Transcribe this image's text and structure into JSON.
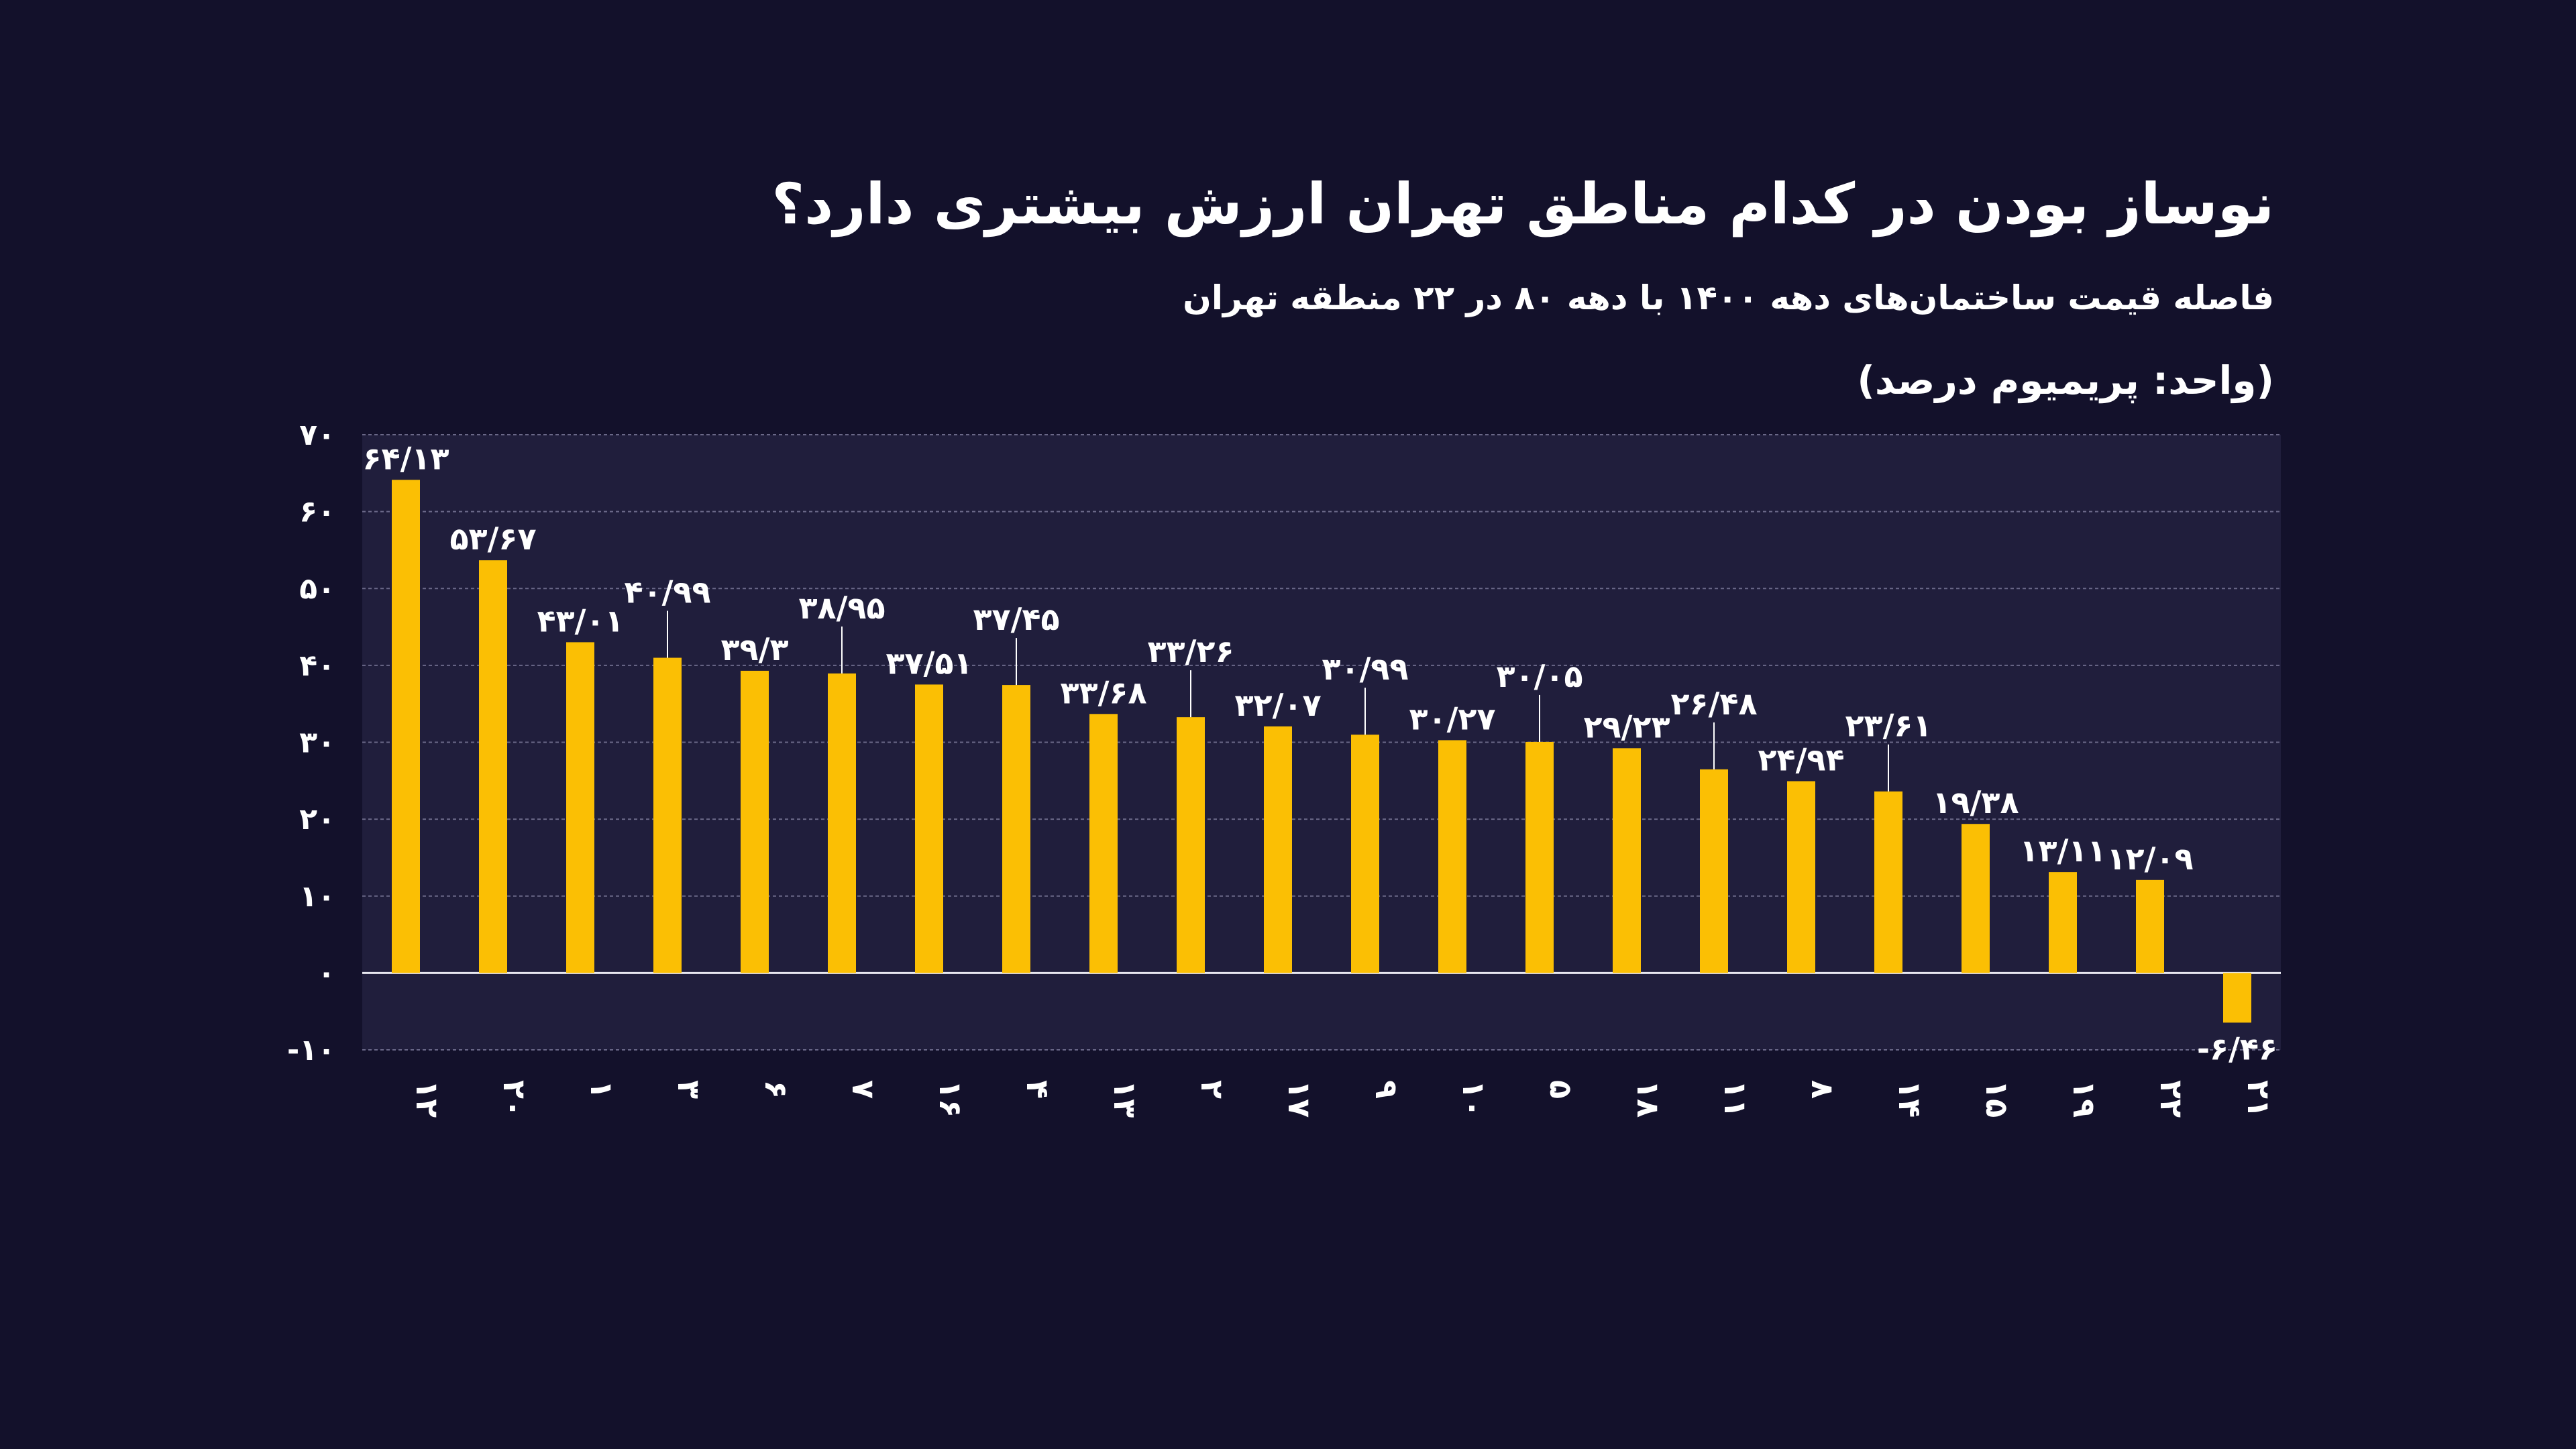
{
  "colors": {
    "background": "#13112b",
    "plot_background": "#201e3c",
    "bar": "#fbbf04",
    "grid": "#6a6888",
    "text": "#ffffff"
  },
  "chart_data": {
    "type": "bar",
    "title": "نوساز بودن در کدام مناطق تهران ارزش بیشتری دارد؟",
    "subtitle": "فاصله قیمت ساختمان‌های دهه ۱۴۰۰ با دهه ۸۰ در ۲۲ منطقه تهران",
    "unit_label": "(واحد: پریمیوم درصد)",
    "xlabel": "",
    "ylabel": "",
    "ylim": [
      -10,
      70
    ],
    "yticks": [
      {
        "value": 70,
        "label": "۷۰"
      },
      {
        "value": 60,
        "label": "۶۰"
      },
      {
        "value": 50,
        "label": "۵۰"
      },
      {
        "value": 40,
        "label": "۴۰"
      },
      {
        "value": 30,
        "label": "۳۰"
      },
      {
        "value": 20,
        "label": "۲۰"
      },
      {
        "value": 10,
        "label": "۱۰"
      },
      {
        "value": 0,
        "label": "۰"
      },
      {
        "value": -10,
        "label": "-۱۰"
      }
    ],
    "grid": true,
    "legend": "none",
    "categories": [
      "۱۲",
      "۲۰",
      "۱",
      "۳",
      "۶",
      "۷",
      "۱۶",
      "۴",
      "۱۳",
      "۲",
      "۱۷",
      "۹",
      "۱۰",
      "۵",
      "۱۸",
      "۱۱",
      "۸",
      "۱۴",
      "۱۵",
      "۱۹",
      "۲۲",
      "۲۱"
    ],
    "values": [
      64.13,
      53.67,
      43.01,
      40.99,
      39.3,
      38.95,
      37.51,
      37.45,
      33.68,
      33.26,
      32.07,
      30.99,
      30.27,
      30.05,
      29.23,
      26.48,
      24.94,
      23.61,
      19.38,
      13.11,
      12.09,
      -6.46
    ],
    "value_labels": [
      "۶۴/۱۳",
      "۵۳/۶۷",
      "۴۳/۰۱",
      "۴۰/۹۹",
      "۳۹/۳",
      "۳۸/۹۵",
      "۳۷/۵۱",
      "۳۷/۴۵",
      "۳۳/۶۸",
      "۳۳/۲۶",
      "۳۲/۰۷",
      "۳۰/۹۹",
      "۳۰/۲۷",
      "۳۰/۰۵",
      "۲۹/۲۳",
      "۲۶/۴۸",
      "۲۴/۹۴",
      "۲۳/۶۱",
      "۱۹/۳۸",
      "۱۳/۱۱",
      "۱۲/۰۹",
      "-۶/۴۶"
    ],
    "label_raised": [
      false,
      false,
      false,
      true,
      false,
      true,
      false,
      true,
      false,
      true,
      false,
      true,
      false,
      true,
      false,
      true,
      false,
      true,
      false,
      false,
      false,
      false
    ]
  }
}
